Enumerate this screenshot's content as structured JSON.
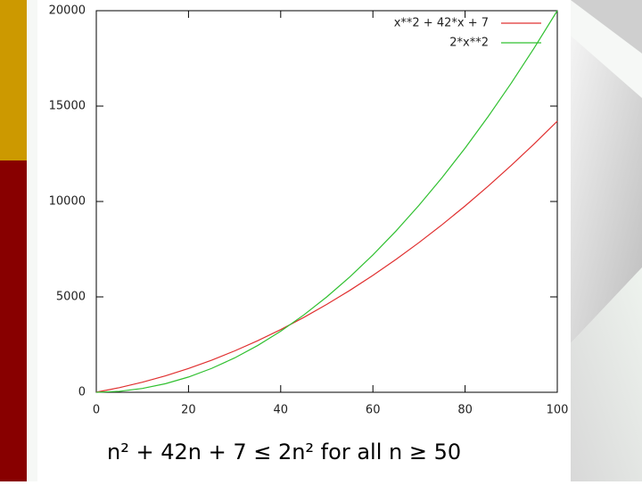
{
  "chart_data": {
    "type": "line",
    "x": [
      0,
      5,
      10,
      15,
      20,
      25,
      30,
      35,
      40,
      45,
      50,
      55,
      60,
      65,
      70,
      75,
      80,
      85,
      90,
      95,
      100
    ],
    "series": [
      {
        "name": "x**2 + 42*x + 7",
        "color": "#e03030",
        "values": [
          7,
          242,
          527,
          862,
          1247,
          1682,
          2167,
          2702,
          3287,
          3922,
          4607,
          5342,
          6127,
          6962,
          7847,
          8782,
          9767,
          10802,
          11887,
          13022,
          14207
        ]
      },
      {
        "name": "2*x**2",
        "color": "#30c030",
        "values": [
          0,
          50,
          200,
          450,
          800,
          1250,
          1800,
          2450,
          3200,
          4050,
          5000,
          6050,
          7200,
          8450,
          9800,
          11250,
          12800,
          14450,
          16200,
          18050,
          20000
        ]
      }
    ],
    "xlim": [
      0,
      100
    ],
    "xticks": [
      0,
      20,
      40,
      60,
      80,
      100
    ],
    "ylim": [
      0,
      20000
    ],
    "yticks": [
      0,
      5000,
      10000,
      15000,
      20000
    ],
    "grid": false,
    "legend": "top-right",
    "annotation": "n² + 42n + 7 ≤ 2n² for all n ≥ 50"
  }
}
